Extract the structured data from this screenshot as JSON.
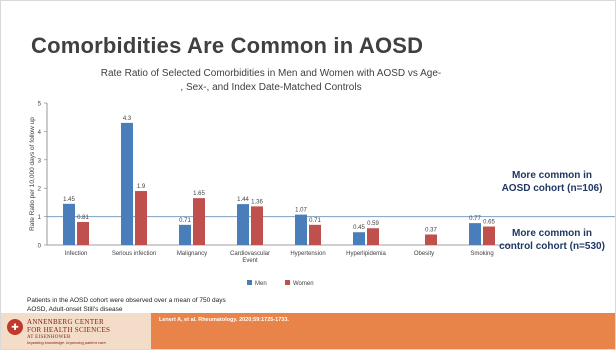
{
  "slide": {
    "title": "Comorbidities Are Common in AOSD",
    "note_top": "More common in AOSD cohort (n=106)",
    "note_bottom": "More common in control cohort (n=530)",
    "footnote1": "Patients in the AOSD cohort were observed over a mean of 750 days",
    "footnote2": "AOSD, Adult-onset Still's disease",
    "logo_name_line1": "ANNENBERG CENTER",
    "logo_name_line2": "FOR HEALTH SCIENCES",
    "logo_name_line3": "AT EISENHOWER",
    "logo_tagline": "Imparting knowledge. Improving patient care.",
    "citation": "Lenert A, et al. Rheumatology. 2020;59:1725-1733.",
    "colors": {
      "men": "#4a7ebb",
      "women": "#c0504d",
      "accent": "#e8834a",
      "note": "#1f3864"
    }
  },
  "chart_data": {
    "type": "bar",
    "title": "Rate Ratio of Selected Comorbidities in Men and Women with AOSD vs Age-, Sex-, and Index Date-Matched Controls",
    "title_line1": "Rate Ratio of Selected Comorbidities in Men and Women with AOSD vs Age-",
    "title_line2": ", Sex-, and Index Date-Matched Controls",
    "ylabel": "Rate Ratio per 10,000 days of follow up",
    "ylim": [
      0,
      5
    ],
    "yticks": [
      0,
      1,
      2,
      3,
      4,
      5
    ],
    "reference_line": 1,
    "categories": [
      "Infection",
      "Serious infection",
      "Malignancy",
      "Cardiovascular Event",
      "Hypertension",
      "Hyperlipidemia",
      "Obesity",
      "Smoking"
    ],
    "category_lines": [
      [
        "Infection"
      ],
      [
        "Serious infection"
      ],
      [
        "Malignancy"
      ],
      [
        "Cardiovascular",
        "Event"
      ],
      [
        "Hypertension"
      ],
      [
        "Hyperlipidemia"
      ],
      [
        "Obesity"
      ],
      [
        "Smoking"
      ]
    ],
    "series": [
      {
        "name": "Men",
        "values": [
          1.45,
          4.3,
          0.71,
          1.44,
          1.07,
          0.45,
          null,
          0.77
        ],
        "labels": [
          "1.45",
          "4.3",
          "0.71",
          "1.44",
          "1.07",
          "0.45",
          "",
          "0.77"
        ]
      },
      {
        "name": "Women",
        "values": [
          0.81,
          1.9,
          1.65,
          1.36,
          0.71,
          0.59,
          0.37,
          0.65
        ],
        "labels": [
          "0.81",
          "1.9",
          "1.65",
          "1.36",
          "0.71",
          "0.59",
          "0.37",
          "0.65"
        ]
      }
    ],
    "legend": "bottom-center",
    "grid": false
  }
}
